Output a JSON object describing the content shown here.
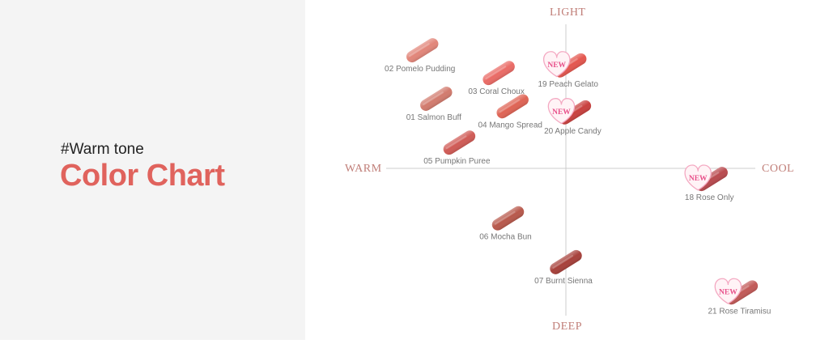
{
  "left_panel": {
    "hashtag": "#Warm tone",
    "title": "Color Chart"
  },
  "colors": {
    "title": "#e0635d",
    "axis_text": "#c07e78",
    "axis_line": "#cccccc",
    "label_text": "#777777",
    "new_badge_text": "#e8508a",
    "new_badge_fill": "#fff3f6",
    "new_badge_stroke": "#f4a9c2"
  },
  "chart_data": {
    "type": "scatter",
    "axes": {
      "top": "LIGHT",
      "bottom": "DEEP",
      "left": "WARM",
      "right": "COOL"
    },
    "new_badge": "NEW",
    "points": [
      {
        "label": "02 Pomelo Pudding",
        "x": -0.62,
        "y": 0.78,
        "color": "#e2867a",
        "is_new": false
      },
      {
        "label": "03 Coral Choux",
        "x": -0.29,
        "y": 0.63,
        "color": "#ea6b66",
        "is_new": false
      },
      {
        "label": "19 Peach Gelato",
        "x": 0.02,
        "y": 0.68,
        "color": "#e4574f",
        "is_new": true
      },
      {
        "label": "01 Salmon Buff",
        "x": -0.56,
        "y": 0.46,
        "color": "#d27b6e",
        "is_new": false
      },
      {
        "label": "04 Mango Spread",
        "x": -0.23,
        "y": 0.41,
        "color": "#df6455",
        "is_new": false
      },
      {
        "label": "20 Apple Candy",
        "x": 0.04,
        "y": 0.37,
        "color": "#c9413f",
        "is_new": true
      },
      {
        "label": "05 Pumpkin Puree",
        "x": -0.46,
        "y": 0.17,
        "color": "#d05b56",
        "is_new": false
      },
      {
        "label": "18 Rose Only",
        "x": 0.63,
        "y": -0.07,
        "color": "#b94a4f",
        "is_new": true
      },
      {
        "label": "06 Mocha Bun",
        "x": -0.25,
        "y": -0.33,
        "color": "#b8594c",
        "is_new": false
      },
      {
        "label": "07 Burnt Sienna",
        "x": 0.0,
        "y": -0.62,
        "color": "#a7413b",
        "is_new": false
      },
      {
        "label": "21 Rose Tiramisu",
        "x": 0.76,
        "y": -0.82,
        "color": "#c25a58",
        "is_new": true
      }
    ]
  }
}
